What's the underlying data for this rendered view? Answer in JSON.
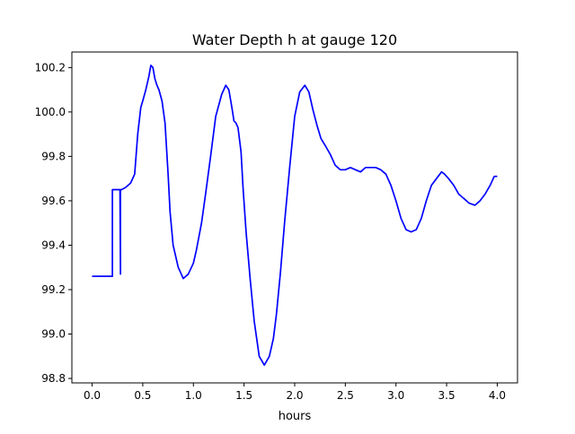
{
  "chart_data": {
    "type": "line",
    "title": "Water Depth h at gauge 120",
    "xlabel": "hours",
    "ylabel": "",
    "xlim": [
      -0.2,
      4.2
    ],
    "ylim": [
      98.78,
      100.27
    ],
    "xticks": [
      0.0,
      0.5,
      1.0,
      1.5,
      2.0,
      2.5,
      3.0,
      3.5,
      4.0
    ],
    "xtick_labels": [
      "0.0",
      "0.5",
      "1.0",
      "1.5",
      "2.0",
      "2.5",
      "3.0",
      "3.5",
      "4.0"
    ],
    "yticks": [
      98.8,
      99.0,
      99.2,
      99.4,
      99.6,
      99.8,
      100.0,
      100.2
    ],
    "ytick_labels": [
      "98.8",
      "99.0",
      "99.2",
      "99.4",
      "99.6",
      "99.8",
      "100.0",
      "100.2"
    ],
    "grid": false,
    "series": [
      {
        "name": "",
        "color": "#0000ff",
        "x": [
          0.0,
          0.19,
          0.2,
          0.2,
          0.27,
          0.275,
          0.28,
          0.28,
          0.285,
          0.29,
          0.29,
          0.33,
          0.38,
          0.42,
          0.45,
          0.48,
          0.5,
          0.53,
          0.56,
          0.58,
          0.6,
          0.62,
          0.64,
          0.66,
          0.69,
          0.72,
          0.75,
          0.77,
          0.8,
          0.85,
          0.9,
          0.95,
          1.0,
          1.03,
          1.08,
          1.12,
          1.17,
          1.22,
          1.28,
          1.32,
          1.35,
          1.38,
          1.4,
          1.42,
          1.44,
          1.47,
          1.49,
          1.52,
          1.56,
          1.6,
          1.65,
          1.7,
          1.75,
          1.79,
          1.82,
          1.86,
          1.9,
          1.95,
          2.0,
          2.05,
          2.1,
          2.14,
          2.18,
          2.22,
          2.26,
          2.3,
          2.35,
          2.4,
          2.45,
          2.5,
          2.55,
          2.6,
          2.65,
          2.7,
          2.75,
          2.8,
          2.85,
          2.9,
          2.95,
          3.0,
          3.05,
          3.1,
          3.15,
          3.2,
          3.25,
          3.3,
          3.35,
          3.4,
          3.45,
          3.48,
          3.52,
          3.57,
          3.62,
          3.67,
          3.72,
          3.78,
          3.83,
          3.88,
          3.93,
          3.97,
          4.0
        ],
        "y": [
          99.26,
          99.26,
          99.26,
          99.65,
          99.65,
          99.65,
          99.27,
          99.65,
          99.65,
          99.65,
          99.65,
          99.66,
          99.68,
          99.72,
          99.9,
          100.02,
          100.05,
          100.1,
          100.16,
          100.21,
          100.2,
          100.15,
          100.12,
          100.1,
          100.05,
          99.95,
          99.72,
          99.55,
          99.4,
          99.3,
          99.25,
          99.27,
          99.32,
          99.38,
          99.5,
          99.63,
          99.8,
          99.98,
          100.08,
          100.12,
          100.1,
          100.02,
          99.96,
          99.95,
          99.93,
          99.82,
          99.66,
          99.46,
          99.25,
          99.06,
          98.9,
          98.86,
          98.9,
          98.98,
          99.09,
          99.28,
          99.5,
          99.75,
          99.98,
          100.09,
          100.12,
          100.09,
          100.01,
          99.94,
          99.88,
          99.85,
          99.81,
          99.76,
          99.74,
          99.74,
          99.75,
          99.74,
          99.73,
          99.75,
          99.75,
          99.75,
          99.74,
          99.72,
          99.67,
          99.6,
          99.52,
          99.47,
          99.46,
          99.47,
          99.52,
          99.6,
          99.67,
          99.7,
          99.73,
          99.72,
          99.7,
          99.67,
          99.63,
          99.61,
          99.59,
          99.58,
          99.6,
          99.63,
          99.67,
          99.71,
          99.71
        ]
      }
    ]
  }
}
